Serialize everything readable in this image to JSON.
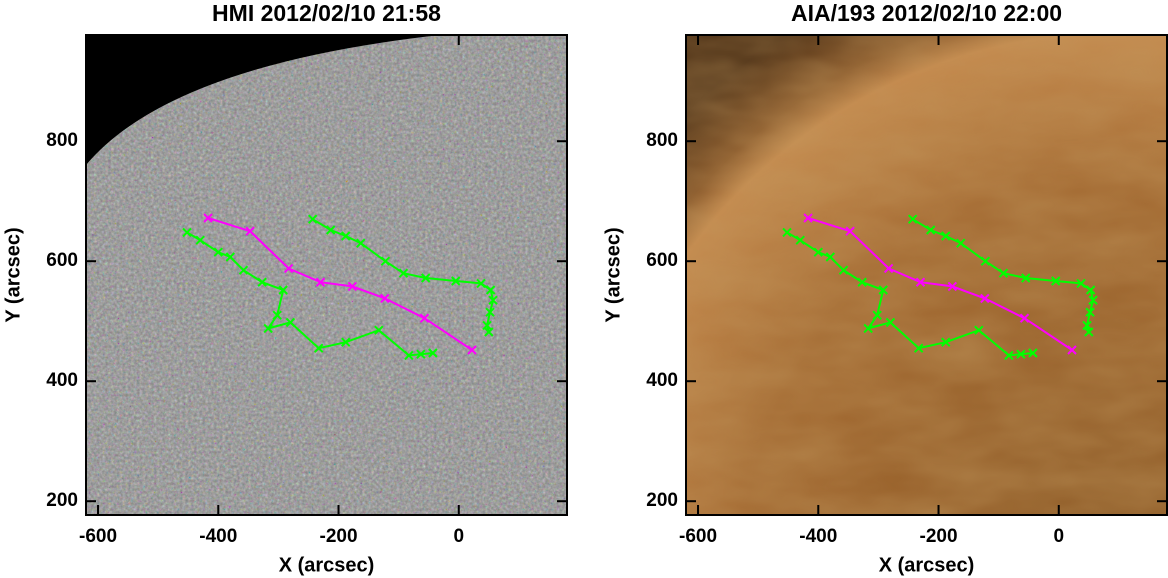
{
  "chart_data": [
    {
      "type": "line",
      "title": "HMI 2012/02/10 21:58",
      "xlabel": "X (arcsec)",
      "ylabel": "Y (arcsec)",
      "xlim": [
        -620,
        180
      ],
      "ylim": [
        177,
        977
      ],
      "xticks": [
        -600,
        -400,
        -200,
        0
      ],
      "yticks": [
        200,
        400,
        600,
        800
      ],
      "series": [
        {
          "color": "#ff00ff",
          "x": [
            -417,
            -347,
            -283,
            -230,
            -177,
            -123,
            -57,
            22
          ],
          "values": [
            672,
            650,
            588,
            565,
            558,
            538,
            505,
            452
          ]
        },
        {
          "color": "#00ff00",
          "x": [
            -243,
            -213,
            -188,
            -163,
            -122,
            -92,
            -55,
            -5,
            37,
            53,
            57,
            52,
            47,
            50
          ],
          "values": [
            670,
            652,
            642,
            630,
            600,
            580,
            572,
            567,
            563,
            552,
            535,
            515,
            493,
            482
          ]
        },
        {
          "color": "#00ff00",
          "x": [
            -452,
            -430,
            -400,
            -380,
            -358,
            -327,
            -292,
            -302,
            -317,
            -280,
            -233,
            -188,
            -133,
            -83,
            -63,
            -43
          ],
          "values": [
            648,
            635,
            615,
            607,
            585,
            565,
            552,
            510,
            488,
            498,
            455,
            465,
            485,
            443,
            445,
            447
          ]
        }
      ]
    },
    {
      "type": "line",
      "title": "AIA/193 2012/02/10 22:00",
      "xlabel": "X (arcsec)",
      "ylabel": "Y (arcsec)",
      "xlim": [
        -620,
        180
      ],
      "ylim": [
        177,
        977
      ],
      "xticks": [
        -600,
        -400,
        -200,
        0
      ],
      "yticks": [
        200,
        400,
        600,
        800
      ],
      "series": [
        {
          "color": "#ff00ff",
          "x": [
            -417,
            -347,
            -283,
            -230,
            -177,
            -123,
            -57,
            22
          ],
          "values": [
            672,
            650,
            588,
            565,
            558,
            538,
            505,
            452
          ]
        },
        {
          "color": "#00ff00",
          "x": [
            -243,
            -213,
            -188,
            -163,
            -122,
            -92,
            -55,
            -5,
            37,
            53,
            57,
            52,
            47,
            50
          ],
          "values": [
            670,
            652,
            642,
            630,
            600,
            580,
            572,
            567,
            563,
            552,
            535,
            515,
            493,
            482
          ]
        },
        {
          "color": "#00ff00",
          "x": [
            -452,
            -430,
            -400,
            -380,
            -358,
            -327,
            -292,
            -302,
            -317,
            -280,
            -233,
            -188,
            -133,
            -83,
            -63,
            -43
          ],
          "values": [
            648,
            635,
            615,
            607,
            585,
            565,
            552,
            510,
            488,
            498,
            455,
            465,
            485,
            443,
            445,
            447
          ]
        }
      ]
    }
  ]
}
